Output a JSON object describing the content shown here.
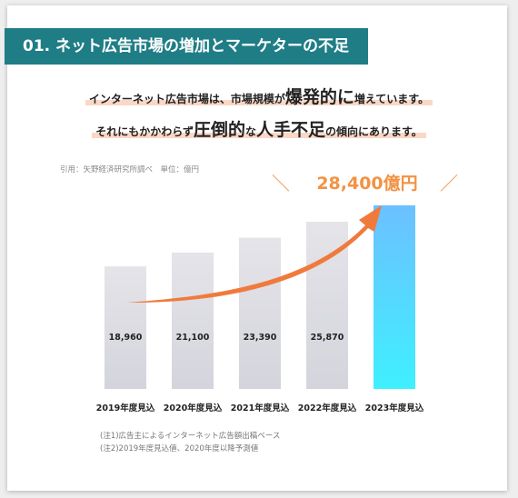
{
  "header": {
    "title": "01. ネット広告市場の増加とマーケターの不足"
  },
  "headline": {
    "line1_a": "インターネット広告市場は、市場規模が",
    "line1_emph": "爆発的に",
    "line1_b": "増えています。",
    "line2_a": "それにもかかわらず",
    "line2_emph1": "圧倒的",
    "line2_mid": "な",
    "line2_emph2": "人手不足",
    "line2_b": "の傾向にあります。"
  },
  "source": "引用：矢野経済研究所調べ　単位：億円",
  "highlight_label": "28,400億円",
  "notes": [
    "(注1)広告主によるインターネット広告額出稿ベース",
    "(注2)2019年度見込値、2020年度以降予測値"
  ],
  "chart_data": {
    "type": "bar",
    "categories": [
      "2019年度見込",
      "2020年度見込",
      "2021年度見込",
      "2022年度見込",
      "2023年度見込"
    ],
    "values": [
      18960,
      21100,
      23390,
      25870,
      28400
    ],
    "value_labels": [
      "18,960",
      "21,100",
      "23,390",
      "25,870",
      ""
    ],
    "title": "",
    "xlabel": "",
    "ylabel": "",
    "ylim": [
      0,
      28400
    ],
    "grid": false,
    "legend": "none",
    "colors": {
      "bar": "#dcdce2",
      "highlight_top": "#6cc0ff",
      "highlight_bottom": "#3ff0ff",
      "arrow": "#f07a3c",
      "label": "#f29242"
    }
  }
}
